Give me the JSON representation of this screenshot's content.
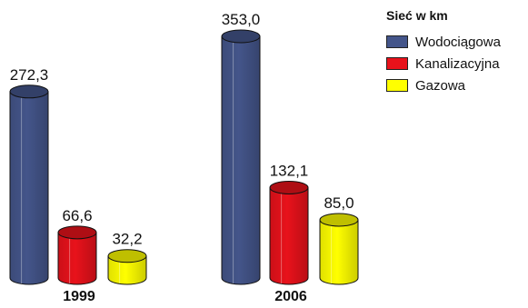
{
  "chart_data": {
    "type": "bar",
    "categories": [
      "1999",
      "2006"
    ],
    "series": [
      {
        "name": "Wodociągowa",
        "values": [
          272.3,
          353.0
        ],
        "labels": [
          "272,3",
          "353,0"
        ],
        "color": "#44558a"
      },
      {
        "name": "Kanalizacyjna",
        "values": [
          66.6,
          132.1
        ],
        "labels": [
          "66,6",
          "132,1"
        ],
        "color": "#e8121b"
      },
      {
        "name": "Gazowa",
        "values": [
          32.2,
          85.0
        ],
        "labels": [
          "32,2",
          "85,0"
        ],
        "color": "#ffff00"
      }
    ],
    "legend_title": "Sieć w km",
    "legend_position": "top-right",
    "ylim": [
      0,
      353.0
    ],
    "grid": false
  }
}
